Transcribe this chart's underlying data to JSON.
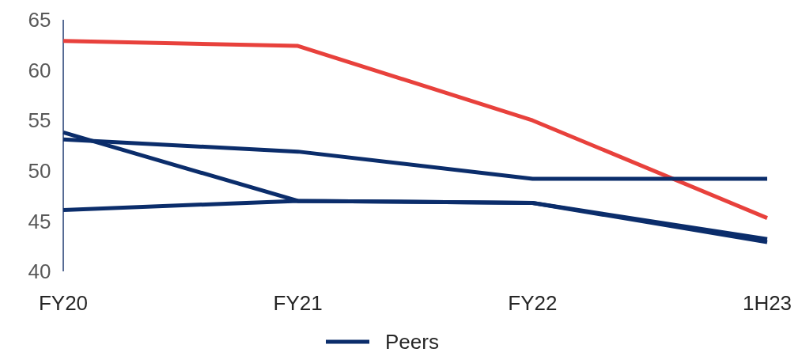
{
  "chart_data": {
    "type": "line",
    "categories": [
      "FY20",
      "FY21",
      "FY22",
      "1H23"
    ],
    "ylim": [
      40,
      65
    ],
    "yticks": [
      40,
      45,
      50,
      55,
      60,
      65
    ],
    "grid": false,
    "legend": "bottom",
    "marker": "none",
    "line_style": "solid",
    "series": [
      {
        "color": "#e8413c",
        "values": [
          62.9,
          62.4,
          55.0,
          45.3
        ]
      },
      {
        "name": "Peers",
        "color": "#0b2d6b",
        "values": [
          53.8,
          47.0,
          46.8,
          43.2
        ]
      },
      {
        "color": "#0b2d6b",
        "values": [
          53.1,
          51.9,
          49.2,
          49.2
        ]
      },
      {
        "color": "#0b2d6b",
        "values": [
          46.1,
          47.0,
          46.8,
          42.9
        ]
      }
    ]
  }
}
